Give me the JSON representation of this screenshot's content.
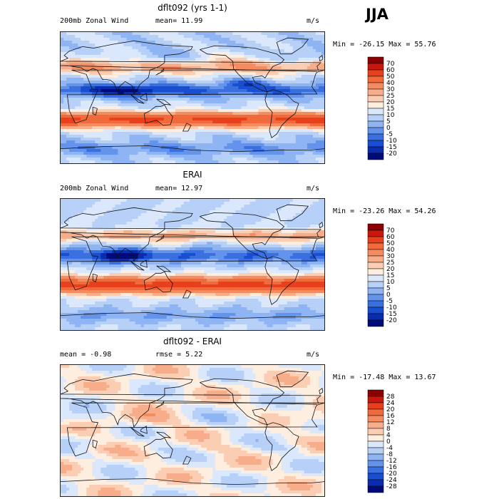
{
  "season": "JJA",
  "panels": [
    {
      "title": "dflt092 (yrs 1-1)",
      "left": "200mb Zonal Wind",
      "mid": "mean=   11.99",
      "units": "m/s",
      "minmax": "Min = -26.15 Max =  55.76",
      "colorbar": {
        "labels": [
          "70",
          "60",
          "50",
          "40",
          "30",
          "25",
          "20",
          "15",
          "10",
          "5",
          "0",
          "-5",
          "-10",
          "-15",
          "-20"
        ],
        "colors": [
          "#8b0000",
          "#c8180c",
          "#e8401c",
          "#f06a3c",
          "#f58c60",
          "#f8ad8a",
          "#fbcdb2",
          "#fdeedf",
          "#dbe8fb",
          "#b7d0f8",
          "#8fb4f3",
          "#6493ec",
          "#3a6fe0",
          "#1a4ed0",
          "#0a2cae",
          "#000a78"
        ]
      },
      "field": "model"
    },
    {
      "title": "ERAI",
      "left": "200mb Zonal Wind",
      "mid": "mean=   12.97",
      "units": "m/s",
      "minmax": "Min = -23.26 Max =  54.26",
      "colorbar": {
        "labels": [
          "70",
          "60",
          "50",
          "40",
          "30",
          "25",
          "20",
          "15",
          "10",
          "5",
          "0",
          "-5",
          "-10",
          "-15",
          "-20"
        ],
        "colors": [
          "#8b0000",
          "#c8180c",
          "#e8401c",
          "#f06a3c",
          "#f58c60",
          "#f8ad8a",
          "#fbcdb2",
          "#fdeedf",
          "#dbe8fb",
          "#b7d0f8",
          "#8fb4f3",
          "#6493ec",
          "#3a6fe0",
          "#1a4ed0",
          "#0a2cae",
          "#000a78"
        ]
      },
      "field": "obs"
    },
    {
      "title": "dflt092 - ERAI",
      "left": "mean =   -0.98",
      "mid": "rmse =    5.22",
      "units": "m/s",
      "minmax": "Min = -17.48 Max =  13.67",
      "colorbar": {
        "labels": [
          "28",
          "24",
          "20",
          "16",
          "12",
          "8",
          "4",
          "0",
          "-4",
          "-8",
          "-12",
          "-16",
          "-20",
          "-24",
          "-28"
        ],
        "colors": [
          "#8b0000",
          "#c8180c",
          "#e8401c",
          "#f06a3c",
          "#f58c60",
          "#f8ad8a",
          "#fbcdb2",
          "#fdeedf",
          "#dbe8fb",
          "#b7d0f8",
          "#8fb4f3",
          "#6493ec",
          "#3a6fe0",
          "#1a4ed0",
          "#0a2cae",
          "#000a78"
        ]
      },
      "field": "diff"
    }
  ]
}
